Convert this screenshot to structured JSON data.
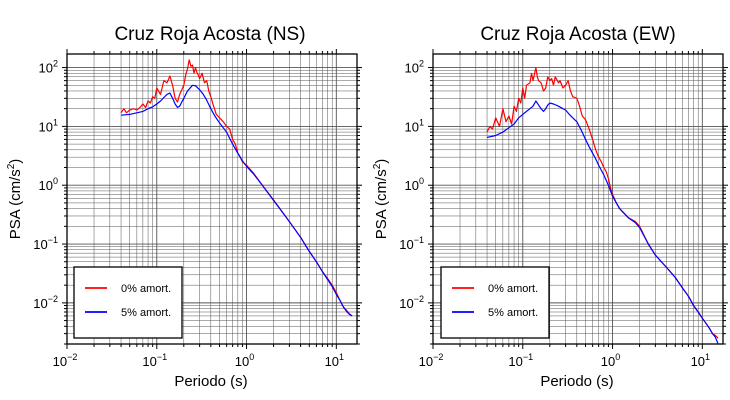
{
  "colors": {
    "undamped": "#ff0000",
    "damped": "#0000ff",
    "grid": "#555555",
    "frame": "#000000"
  },
  "chart_data": [
    {
      "type": "line",
      "title": "Cruz Roja Acosta (NS)",
      "xlabel": "Periodo (s)",
      "ylabel_base": "PSA (cm/s",
      "ylabel_sup": "2",
      "ylabel_close": ")",
      "x_scale": "log",
      "y_scale": "log",
      "xlim": [
        0.01,
        17
      ],
      "ylim": [
        0.002,
        170
      ],
      "grid": true,
      "legend_position": "bottom-left",
      "x_ticks": [
        {
          "value": 0.01,
          "base": "10",
          "exp": "−2"
        },
        {
          "value": 0.1,
          "base": "10",
          "exp": "−1"
        },
        {
          "value": 1,
          "base": "10",
          "exp": "0"
        },
        {
          "value": 10,
          "base": "10",
          "exp": "1"
        }
      ],
      "y_ticks": [
        {
          "value": 0.01,
          "base": "10",
          "exp": "−2"
        },
        {
          "value": 0.1,
          "base": "10",
          "exp": "−1"
        },
        {
          "value": 1,
          "base": "10",
          "exp": "0"
        },
        {
          "value": 10,
          "base": "10",
          "exp": "1"
        },
        {
          "value": 100,
          "base": "10",
          "exp": "2"
        }
      ],
      "series": [
        {
          "name": "0% amort.",
          "color_key": "undamped",
          "points": [
            [
              0.04,
              17
            ],
            [
              0.043,
              20
            ],
            [
              0.046,
              17
            ],
            [
              0.05,
              19
            ],
            [
              0.055,
              20
            ],
            [
              0.06,
              19
            ],
            [
              0.065,
              21
            ],
            [
              0.07,
              24
            ],
            [
              0.075,
              21
            ],
            [
              0.08,
              27
            ],
            [
              0.085,
              25
            ],
            [
              0.09,
              32
            ],
            [
              0.095,
              30
            ],
            [
              0.1,
              45
            ],
            [
              0.11,
              35
            ],
            [
              0.12,
              60
            ],
            [
              0.13,
              55
            ],
            [
              0.14,
              72
            ],
            [
              0.15,
              50
            ],
            [
              0.16,
              30
            ],
            [
              0.17,
              26
            ],
            [
              0.18,
              35
            ],
            [
              0.2,
              50
            ],
            [
              0.21,
              75
            ],
            [
              0.22,
              95
            ],
            [
              0.23,
              135
            ],
            [
              0.24,
              105
            ],
            [
              0.25,
              110
            ],
            [
              0.26,
              80
            ],
            [
              0.27,
              100
            ],
            [
              0.28,
              82
            ],
            [
              0.29,
              75
            ],
            [
              0.3,
              65
            ],
            [
              0.32,
              80
            ],
            [
              0.34,
              55
            ],
            [
              0.36,
              60
            ],
            [
              0.38,
              40
            ],
            [
              0.4,
              32
            ],
            [
              0.43,
              22
            ],
            [
              0.46,
              16
            ],
            [
              0.5,
              14
            ],
            [
              0.55,
              12
            ],
            [
              0.6,
              10
            ],
            [
              0.65,
              9
            ],
            [
              0.7,
              6
            ],
            [
              0.75,
              5
            ],
            [
              0.8,
              3.5
            ],
            [
              0.85,
              3
            ],
            [
              0.9,
              2.5
            ],
            [
              1,
              2.2
            ],
            [
              1.2,
              1.6
            ],
            [
              1.5,
              1.0
            ],
            [
              2,
              0.56
            ],
            [
              2.5,
              0.35
            ],
            [
              3,
              0.24
            ],
            [
              4,
              0.13
            ],
            [
              5,
              0.075
            ],
            [
              6,
              0.05
            ],
            [
              7,
              0.034
            ],
            [
              8,
              0.026
            ],
            [
              9,
              0.02
            ],
            [
              10,
              0.015
            ],
            [
              11,
              0.011
            ],
            [
              12,
              0.0085
            ],
            [
              13,
              0.0075
            ],
            [
              14,
              0.0065
            ],
            [
              15,
              0.006
            ]
          ]
        },
        {
          "name": "5% amort.",
          "color_key": "damped",
          "points": [
            [
              0.04,
              15.5
            ],
            [
              0.05,
              16
            ],
            [
              0.06,
              17
            ],
            [
              0.07,
              18
            ],
            [
              0.08,
              20
            ],
            [
              0.09,
              21.5
            ],
            [
              0.1,
              24
            ],
            [
              0.11,
              27
            ],
            [
              0.12,
              31
            ],
            [
              0.13,
              35
            ],
            [
              0.14,
              37
            ],
            [
              0.15,
              30
            ],
            [
              0.16,
              24
            ],
            [
              0.17,
              21
            ],
            [
              0.18,
              22
            ],
            [
              0.19,
              26
            ],
            [
              0.2,
              30
            ],
            [
              0.22,
              40
            ],
            [
              0.25,
              50
            ],
            [
              0.27,
              49
            ],
            [
              0.3,
              42
            ],
            [
              0.33,
              35
            ],
            [
              0.36,
              28
            ],
            [
              0.4,
              20
            ],
            [
              0.45,
              14.5
            ],
            [
              0.5,
              11.5
            ],
            [
              0.55,
              9.5
            ],
            [
              0.6,
              8
            ],
            [
              0.7,
              5
            ],
            [
              0.8,
              3.5
            ],
            [
              0.9,
              2.6
            ],
            [
              1,
              2.1
            ],
            [
              1.2,
              1.55
            ],
            [
              1.5,
              1.0
            ],
            [
              2,
              0.55
            ],
            [
              2.5,
              0.35
            ],
            [
              3,
              0.24
            ],
            [
              4,
              0.13
            ],
            [
              5,
              0.075
            ],
            [
              6,
              0.05
            ],
            [
              7,
              0.034
            ],
            [
              8,
              0.025
            ],
            [
              9,
              0.019
            ],
            [
              10,
              0.014
            ],
            [
              11,
              0.011
            ],
            [
              12,
              0.0085
            ],
            [
              13,
              0.0072
            ],
            [
              14,
              0.0064
            ],
            [
              15,
              0.006
            ]
          ]
        }
      ]
    },
    {
      "type": "line",
      "title": "Cruz Roja Acosta (EW)",
      "xlabel": "Periodo (s)",
      "ylabel_base": "PSA (cm/s",
      "ylabel_sup": "2",
      "ylabel_close": ")",
      "x_scale": "log",
      "y_scale": "log",
      "xlim": [
        0.01,
        17
      ],
      "ylim": [
        0.002,
        170
      ],
      "grid": true,
      "legend_position": "bottom-left",
      "x_ticks": [
        {
          "value": 0.01,
          "base": "10",
          "exp": "−2"
        },
        {
          "value": 0.1,
          "base": "10",
          "exp": "−1"
        },
        {
          "value": 1,
          "base": "10",
          "exp": "0"
        },
        {
          "value": 10,
          "base": "10",
          "exp": "1"
        }
      ],
      "y_ticks": [
        {
          "value": 0.01,
          "base": "10",
          "exp": "−2"
        },
        {
          "value": 0.1,
          "base": "10",
          "exp": "−1"
        },
        {
          "value": 1,
          "base": "10",
          "exp": "0"
        },
        {
          "value": 10,
          "base": "10",
          "exp": "1"
        },
        {
          "value": 100,
          "base": "10",
          "exp": "2"
        }
      ],
      "series": [
        {
          "name": "0% amort.",
          "color_key": "undamped",
          "points": [
            [
              0.04,
              8
            ],
            [
              0.043,
              10
            ],
            [
              0.046,
              9
            ],
            [
              0.05,
              14
            ],
            [
              0.055,
              10
            ],
            [
              0.06,
              20
            ],
            [
              0.065,
              12
            ],
            [
              0.07,
              15
            ],
            [
              0.075,
              11
            ],
            [
              0.08,
              22
            ],
            [
              0.085,
              18
            ],
            [
              0.09,
              30
            ],
            [
              0.095,
              25
            ],
            [
              0.1,
              45
            ],
            [
              0.105,
              30
            ],
            [
              0.11,
              50
            ],
            [
              0.12,
              55
            ],
            [
              0.125,
              80
            ],
            [
              0.13,
              60
            ],
            [
              0.14,
              100
            ],
            [
              0.145,
              70
            ],
            [
              0.15,
              60
            ],
            [
              0.16,
              55
            ],
            [
              0.17,
              40
            ],
            [
              0.18,
              45
            ],
            [
              0.19,
              70
            ],
            [
              0.2,
              60
            ],
            [
              0.21,
              65
            ],
            [
              0.22,
              50
            ],
            [
              0.23,
              70
            ],
            [
              0.25,
              55
            ],
            [
              0.26,
              60
            ],
            [
              0.28,
              45
            ],
            [
              0.3,
              50
            ],
            [
              0.32,
              60
            ],
            [
              0.34,
              40
            ],
            [
              0.36,
              32
            ],
            [
              0.4,
              30
            ],
            [
              0.43,
              22
            ],
            [
              0.46,
              15
            ],
            [
              0.5,
              13
            ],
            [
              0.55,
              9
            ],
            [
              0.6,
              6
            ],
            [
              0.65,
              4
            ],
            [
              0.7,
              3
            ],
            [
              0.75,
              2.5
            ],
            [
              0.8,
              2
            ],
            [
              0.85,
              1.7
            ],
            [
              0.9,
              1.3
            ],
            [
              0.95,
              0.9
            ],
            [
              1,
              0.7
            ],
            [
              1.1,
              0.5
            ],
            [
              1.2,
              0.4
            ],
            [
              1.5,
              0.28
            ],
            [
              1.8,
              0.24
            ],
            [
              2,
              0.2
            ],
            [
              2.5,
              0.1
            ],
            [
              3,
              0.065
            ],
            [
              4,
              0.04
            ],
            [
              5,
              0.027
            ],
            [
              6,
              0.018
            ],
            [
              7,
              0.013
            ],
            [
              8,
              0.009
            ],
            [
              9,
              0.007
            ],
            [
              10,
              0.0055
            ],
            [
              11,
              0.0045
            ],
            [
              12,
              0.0037
            ],
            [
              13,
              0.003
            ],
            [
              14,
              0.0028
            ],
            [
              15,
              0.0025
            ]
          ]
        },
        {
          "name": "5% amort.",
          "color_key": "damped",
          "points": [
            [
              0.04,
              6.5
            ],
            [
              0.05,
              7
            ],
            [
              0.06,
              8
            ],
            [
              0.07,
              9.5
            ],
            [
              0.08,
              11
            ],
            [
              0.09,
              14
            ],
            [
              0.1,
              16
            ],
            [
              0.11,
              18
            ],
            [
              0.12,
              20
            ],
            [
              0.13,
              22
            ],
            [
              0.14,
              27
            ],
            [
              0.15,
              23
            ],
            [
              0.16,
              20
            ],
            [
              0.17,
              18
            ],
            [
              0.18,
              20
            ],
            [
              0.19,
              23
            ],
            [
              0.2,
              25
            ],
            [
              0.22,
              24
            ],
            [
              0.25,
              22
            ],
            [
              0.28,
              20
            ],
            [
              0.3,
              19
            ],
            [
              0.33,
              16
            ],
            [
              0.36,
              14
            ],
            [
              0.4,
              12
            ],
            [
              0.45,
              8.5
            ],
            [
              0.5,
              6
            ],
            [
              0.55,
              4.5
            ],
            [
              0.6,
              3.5
            ],
            [
              0.65,
              2.8
            ],
            [
              0.7,
              2.2
            ],
            [
              0.8,
              1.5
            ],
            [
              0.9,
              1.0
            ],
            [
              1,
              0.65
            ],
            [
              1.2,
              0.4
            ],
            [
              1.5,
              0.28
            ],
            [
              1.8,
              0.23
            ],
            [
              2,
              0.19
            ],
            [
              2.5,
              0.1
            ],
            [
              3,
              0.065
            ],
            [
              4,
              0.04
            ],
            [
              5,
              0.027
            ],
            [
              6,
              0.018
            ],
            [
              7,
              0.013
            ],
            [
              8,
              0.009
            ],
            [
              9,
              0.007
            ],
            [
              10,
              0.0055
            ],
            [
              11,
              0.0045
            ],
            [
              12,
              0.0037
            ],
            [
              13,
              0.003
            ],
            [
              14,
              0.0026
            ],
            [
              15,
              0.002
            ]
          ]
        }
      ]
    }
  ]
}
